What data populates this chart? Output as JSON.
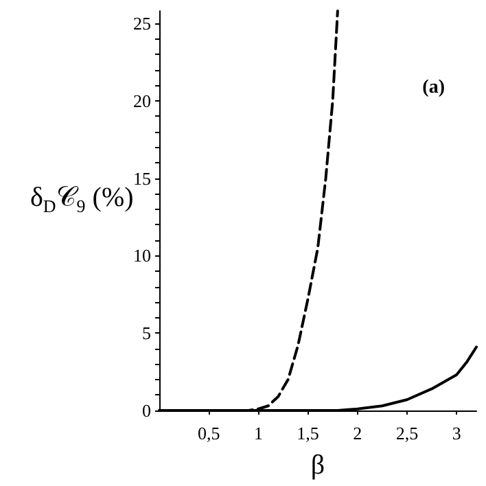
{
  "chart_data": {
    "type": "line",
    "xlabel": "β",
    "ylabel": "δ$_{D}$𝒞$_{9}$ (%)",
    "annotations": [
      "(a)"
    ],
    "xlim": [
      0,
      3.2
    ],
    "ylim": [
      0,
      25.8
    ],
    "xticks": [
      {
        "value": 0.5,
        "label": "0,5"
      },
      {
        "value": 1,
        "label": "1"
      },
      {
        "value": 1.5,
        "label": "1,5"
      },
      {
        "value": 2,
        "label": "2"
      },
      {
        "value": 2.5,
        "label": "2,5"
      },
      {
        "value": 3,
        "label": "3"
      }
    ],
    "yticks": [
      0,
      {
        "value": 1,
        "label": null
      },
      {
        "value": 2,
        "label": null
      },
      {
        "value": 3,
        "label": null
      },
      {
        "value": 4,
        "label": null
      },
      5,
      {
        "value": 6,
        "label": null
      },
      {
        "value": 7,
        "label": null
      },
      {
        "value": 8,
        "label": null
      },
      {
        "value": 9,
        "label": null
      },
      10,
      {
        "value": 11,
        "label": null
      },
      {
        "value": 12,
        "label": null
      },
      {
        "value": 13,
        "label": null
      },
      {
        "value": 14,
        "label": null
      },
      15,
      {
        "value": 16,
        "label": null
      },
      {
        "value": 17,
        "label": null
      },
      {
        "value": 18,
        "label": null
      },
      {
        "value": 19,
        "label": null
      },
      20,
      {
        "value": 21,
        "label": null
      },
      {
        "value": 22,
        "label": null
      },
      {
        "value": 23,
        "label": null
      },
      {
        "value": 24,
        "label": null
      },
      25
    ],
    "grid": false,
    "marker": "none",
    "series": [
      {
        "color": "#000000",
        "line_style": "dashed",
        "x": [
          0,
          0.5,
          0.9,
          1,
          1.1,
          1.2,
          1.3,
          1.4,
          1.5,
          1.6,
          1.68,
          1.75,
          1.8
        ],
        "values": [
          0,
          0,
          0,
          0.1,
          0.3,
          0.9,
          2,
          4.2,
          7.2,
          10.5,
          15,
          20,
          25.8
        ]
      },
      {
        "color": "#000000",
        "line_style": "solid",
        "x": [
          0,
          1,
          1.5,
          1.8,
          2,
          2.25,
          2.5,
          2.75,
          3,
          3.1,
          3.2
        ],
        "values": [
          0,
          0,
          0,
          0,
          0.1,
          0.3,
          0.7,
          1.4,
          2.3,
          3.1,
          4.1
        ]
      }
    ]
  }
}
